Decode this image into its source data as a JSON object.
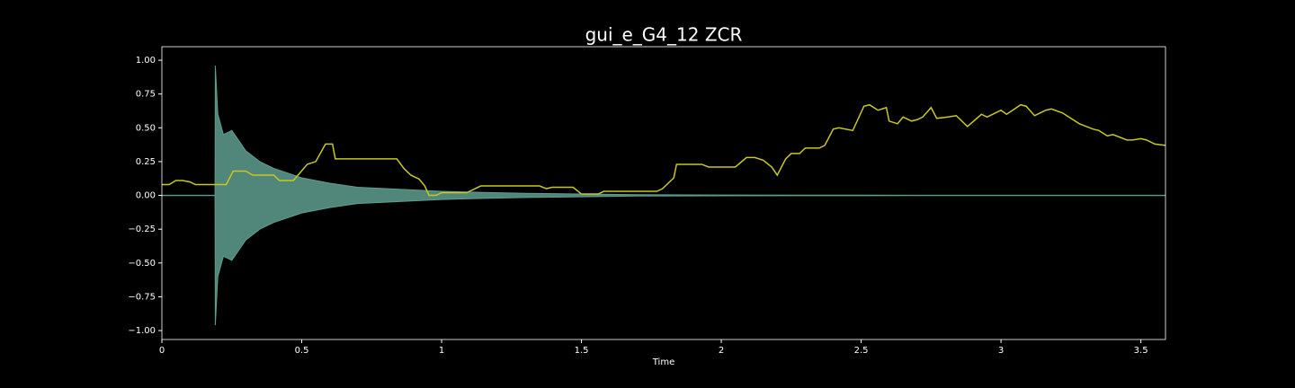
{
  "chart_data": {
    "type": "line",
    "title": "gui_e_G4_12 ZCR",
    "xlabel": "Time",
    "xlim": [
      0,
      3.588
    ],
    "ylim": [
      -1.066,
      1.1
    ],
    "xticks": [
      0,
      0.5,
      1,
      1.5,
      2,
      2.5,
      3,
      3.5
    ],
    "yticks": [
      {
        "value": 1,
        "label": "1.00"
      },
      {
        "value": 0.75,
        "label": "0.75"
      },
      {
        "value": 0.5,
        "label": "0.50"
      },
      {
        "value": 0.25,
        "label": "0.25"
      },
      {
        "value": 0,
        "label": "0.00"
      },
      {
        "value": -0.25,
        "label": "−0.25"
      },
      {
        "value": -0.5,
        "label": "−0.50"
      },
      {
        "value": -0.75,
        "label": "−0.75"
      },
      {
        "value": -1,
        "label": "−1.00"
      }
    ],
    "series": [
      {
        "kind": "area",
        "color": "#5f9e8f",
        "x": [
          0,
          0.19,
          0.191,
          0.195,
          0.2,
          0.22,
          0.25,
          0.3,
          0.35,
          0.4,
          0.5,
          0.6,
          0.7,
          0.85,
          1.0,
          1.15,
          1.3,
          1.5,
          1.7,
          2.0,
          2.5,
          3.0,
          3.588
        ],
        "values": [
          0.001,
          0.001,
          0.96,
          0.8,
          0.6,
          0.45,
          0.48,
          0.33,
          0.25,
          0.2,
          0.13,
          0.09,
          0.06,
          0.045,
          0.03,
          0.022,
          0.015,
          0.01,
          0.005,
          0.003,
          0.002,
          0.001,
          0.001
        ],
        "lower": [
          -0.001,
          -0.001,
          -0.96,
          -0.8,
          -0.6,
          -0.45,
          -0.48,
          -0.33,
          -0.25,
          -0.2,
          -0.13,
          -0.09,
          -0.06,
          -0.045,
          -0.03,
          -0.022,
          -0.015,
          -0.01,
          -0.005,
          -0.003,
          -0.002,
          -0.001,
          -0.001
        ]
      },
      {
        "kind": "line",
        "color": "#c8c81e",
        "x": [
          0,
          0.026,
          0.05,
          0.074,
          0.1,
          0.12,
          0.23,
          0.255,
          0.3,
          0.325,
          0.4,
          0.42,
          0.47,
          0.52,
          0.55,
          0.585,
          0.61,
          0.62,
          0.84,
          0.865,
          0.89,
          0.92,
          0.94,
          0.955,
          0.98,
          1.0,
          1.09,
          1.14,
          1.35,
          1.375,
          1.395,
          1.47,
          1.5,
          1.56,
          1.58,
          1.77,
          1.79,
          1.83,
          1.84,
          1.93,
          1.955,
          2.05,
          2.09,
          2.12,
          2.15,
          2.18,
          2.2,
          2.23,
          2.25,
          2.28,
          2.3,
          2.35,
          2.37,
          2.4,
          2.42,
          2.47,
          2.49,
          2.51,
          2.53,
          2.56,
          2.59,
          2.6,
          2.63,
          2.65,
          2.68,
          2.7,
          2.72,
          2.75,
          2.77,
          2.81,
          2.84,
          2.88,
          2.93,
          2.95,
          3.0,
          3.02,
          3.07,
          3.09,
          3.12,
          3.16,
          3.18,
          3.22,
          3.28,
          3.33,
          3.35,
          3.38,
          3.4,
          3.45,
          3.47,
          3.5,
          3.52,
          3.55,
          3.588
        ],
        "values": [
          0.08,
          0.08,
          0.11,
          0.11,
          0.1,
          0.08,
          0.08,
          0.18,
          0.18,
          0.15,
          0.15,
          0.11,
          0.11,
          0.23,
          0.25,
          0.38,
          0.38,
          0.27,
          0.27,
          0.2,
          0.15,
          0.12,
          0.07,
          0.0,
          0.0,
          0.02,
          0.02,
          0.07,
          0.07,
          0.05,
          0.06,
          0.06,
          0.01,
          0.01,
          0.03,
          0.03,
          0.05,
          0.13,
          0.23,
          0.23,
          0.21,
          0.21,
          0.28,
          0.28,
          0.26,
          0.21,
          0.15,
          0.27,
          0.31,
          0.31,
          0.35,
          0.35,
          0.37,
          0.49,
          0.5,
          0.48,
          0.57,
          0.66,
          0.67,
          0.63,
          0.65,
          0.55,
          0.53,
          0.58,
          0.55,
          0.56,
          0.58,
          0.65,
          0.57,
          0.58,
          0.59,
          0.51,
          0.6,
          0.58,
          0.63,
          0.6,
          0.67,
          0.66,
          0.59,
          0.63,
          0.64,
          0.61,
          0.53,
          0.49,
          0.48,
          0.44,
          0.45,
          0.41,
          0.41,
          0.42,
          0.41,
          0.38,
          0.37
        ]
      }
    ]
  }
}
